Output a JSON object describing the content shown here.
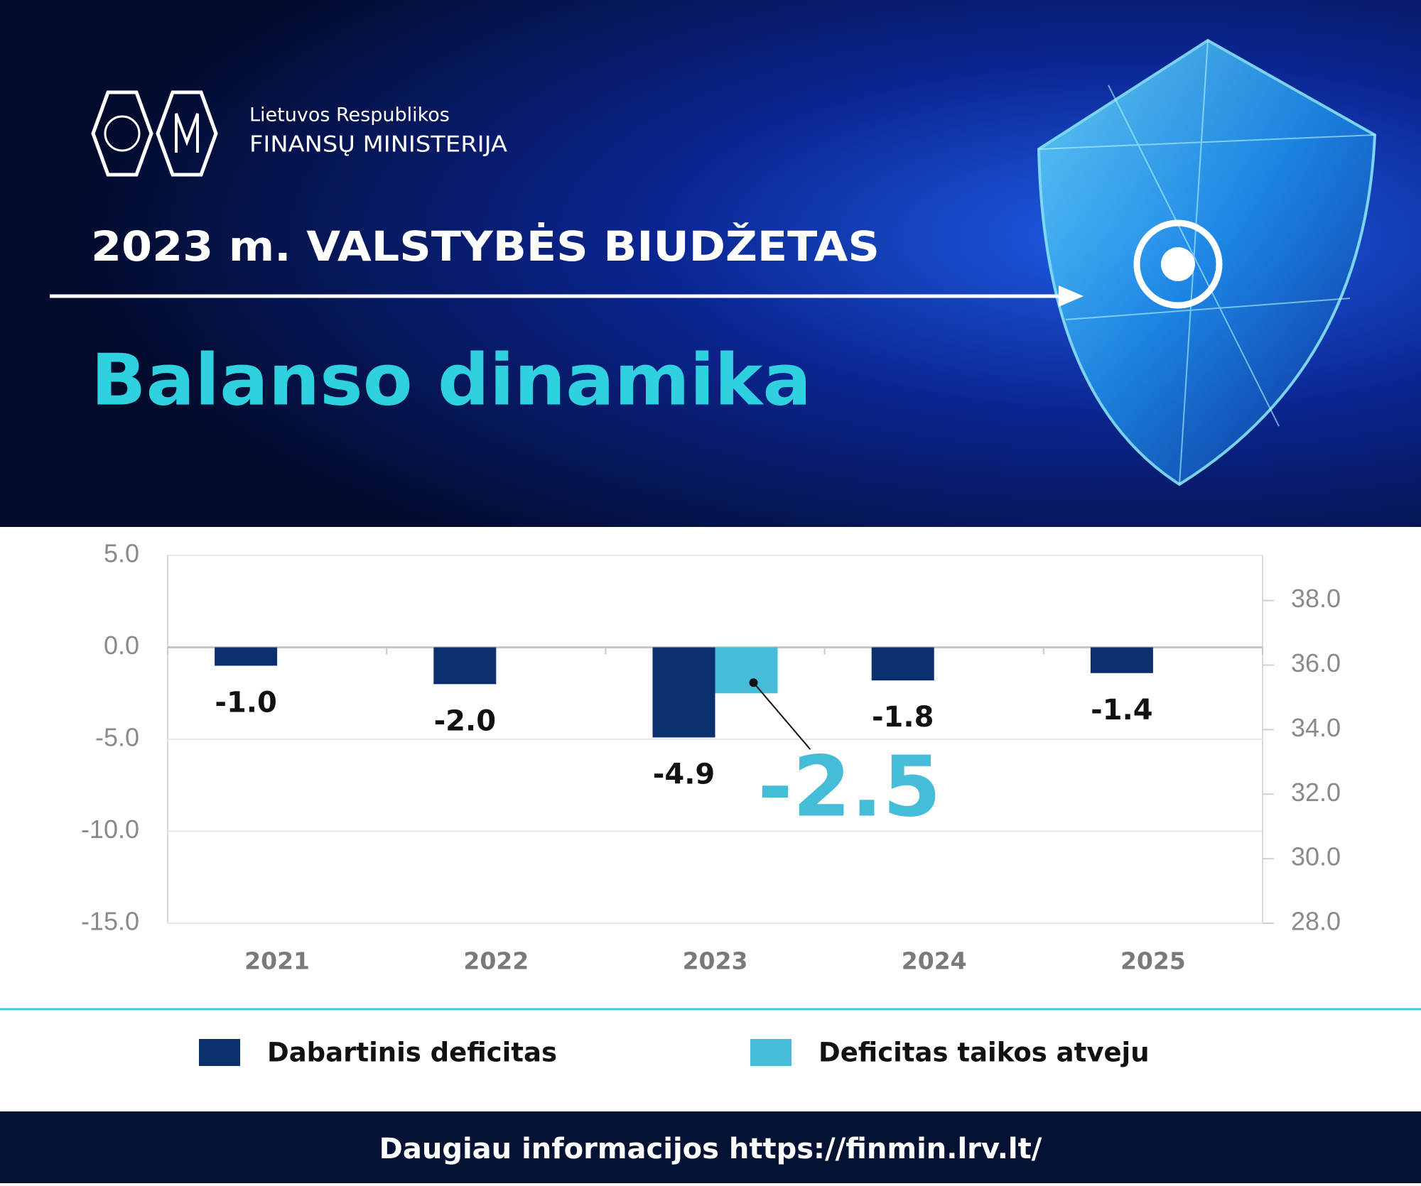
{
  "header": {
    "org_line1": "Lietuvos Respublikos",
    "org_line2": "FINANSŲ MINISTERIJA",
    "title": "2023 m. VALSTYBĖS BIUDŽETAS",
    "subtitle": "Balanso dinamika"
  },
  "chart_data": {
    "type": "bar",
    "categories": [
      "2021",
      "2022",
      "2023",
      "2024",
      "2025"
    ],
    "series": [
      {
        "name": "Dabartinis deficitas",
        "color": "#0c2f6e",
        "values": [
          -1.0,
          -2.0,
          -4.9,
          -1.8,
          -1.4
        ],
        "value_labels": [
          "-1.0",
          "-2.0",
          "-4.9",
          "-1.8",
          "-1.4"
        ]
      },
      {
        "name": "Deficitas taikos atveju",
        "color": "#45bcd8",
        "values": [
          null,
          null,
          -2.5,
          null,
          null
        ],
        "value_labels": [
          null,
          null,
          "-2.5",
          null,
          null
        ]
      }
    ],
    "ylim": [
      -15,
      5
    ],
    "yticks": [
      {
        "value": -15,
        "label": "-15.0"
      },
      {
        "value": -10,
        "label": "-10.0"
      },
      {
        "value": -5,
        "label": "-5.0"
      },
      {
        "value": 0,
        "label": "0.0"
      },
      {
        "value": 5,
        "label": "5.0"
      }
    ],
    "y2lim": [
      28,
      39.4
    ],
    "y2ticks": [
      {
        "value": 28,
        "label": "28.0"
      },
      {
        "value": 30,
        "label": "30.0"
      },
      {
        "value": 32,
        "label": "32.0"
      },
      {
        "value": 34,
        "label": "34.0"
      },
      {
        "value": 36,
        "label": "36.0"
      },
      {
        "value": 38,
        "label": "38.0"
      }
    ],
    "grid": true
  },
  "footer": {
    "text": "Daugiau informacijos https://finmin.lrv.lt/"
  }
}
